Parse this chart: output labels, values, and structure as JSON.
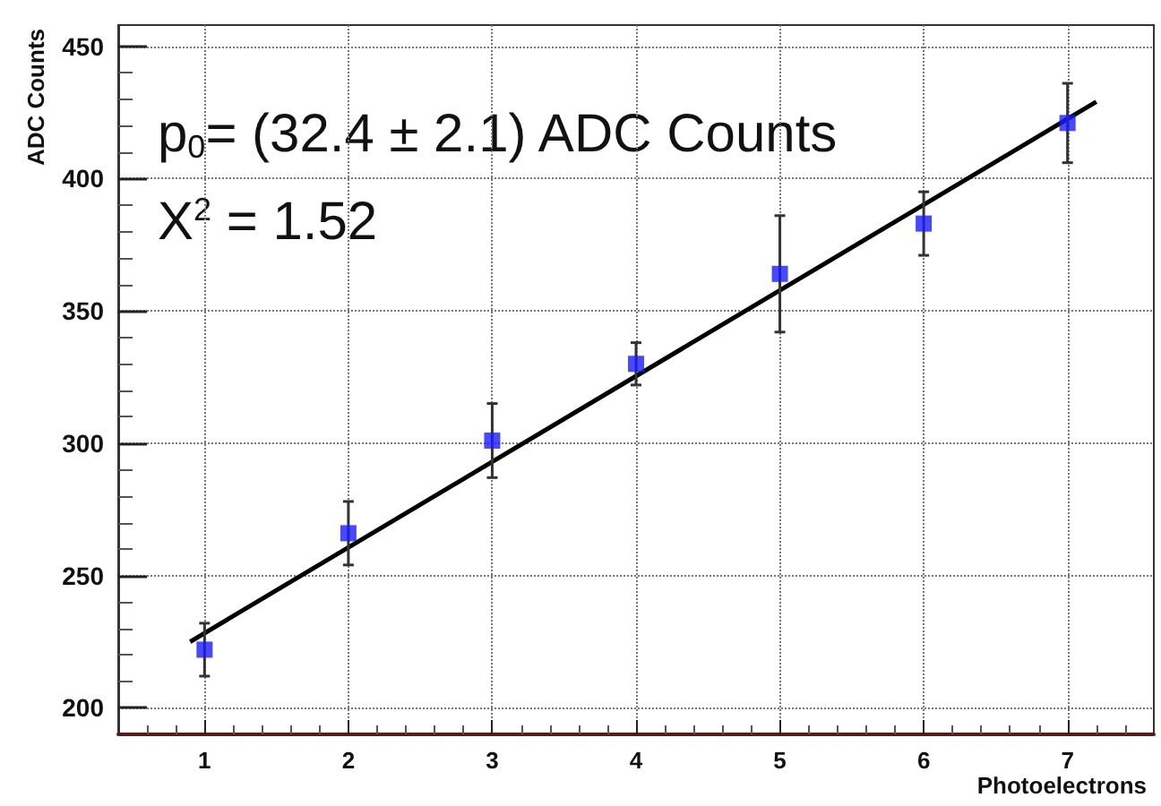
{
  "chart_data": {
    "type": "scatter",
    "xlabel": "Photoelectrons",
    "ylabel": "ADC Counts",
    "annotations": [
      "p$_{0}$= (32.4 ± 2.1) ADC Counts",
      "X$^{2}$ = 1.52"
    ],
    "xlim": [
      0.4,
      7.6
    ],
    "xticks": [
      1,
      2,
      3,
      4,
      5,
      6,
      7
    ],
    "ylim": [
      190,
      458
    ],
    "yticks": [
      200,
      250,
      300,
      350,
      400,
      450
    ],
    "grid": true,
    "marker": "square",
    "series": [
      {
        "color": "#1a1aff",
        "x": [
          1,
          2,
          3,
          4,
          5,
          6,
          7
        ],
        "values": [
          222,
          266,
          301,
          330,
          364,
          383,
          421
        ],
        "errors": [
          10,
          12,
          14,
          8,
          22,
          12,
          15
        ]
      },
      {
        "type": "line",
        "marker": "none",
        "color": "#000000",
        "x": [
          0.9,
          7.2
        ],
        "values": [
          225,
          429
        ]
      }
    ]
  }
}
